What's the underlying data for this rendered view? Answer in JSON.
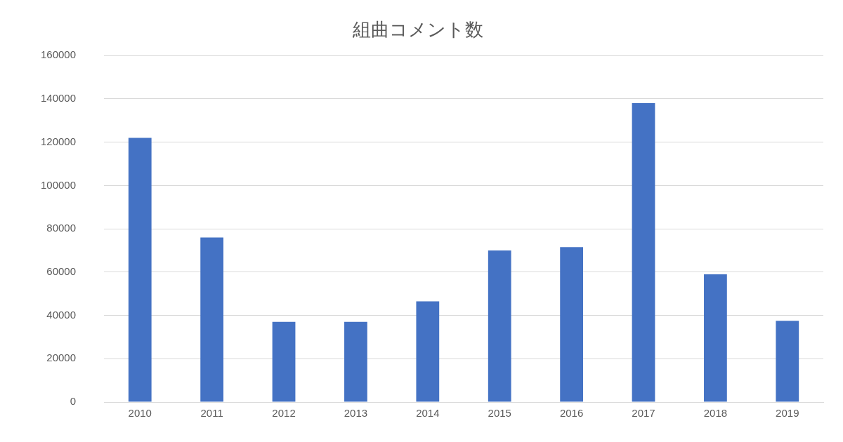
{
  "chart_data": {
    "type": "bar",
    "title": "組曲コメント数",
    "categories": [
      "2010",
      "2011",
      "2012",
      "2013",
      "2014",
      "2015",
      "2016",
      "2017",
      "2018",
      "2019"
    ],
    "values": [
      122000,
      76000,
      37000,
      37000,
      46500,
      70000,
      71500,
      138000,
      59000,
      37500
    ],
    "color": "#4472c4",
    "ylim": [
      0,
      160000
    ],
    "yticks": [
      0,
      20000,
      40000,
      60000,
      80000,
      100000,
      120000,
      140000,
      160000
    ],
    "grid": "y",
    "legend": false
  }
}
